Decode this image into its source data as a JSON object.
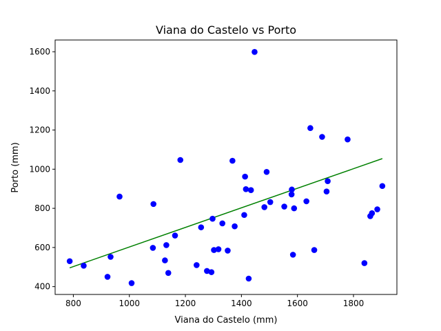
{
  "chart_data": {
    "type": "scatter",
    "title": "Viana do Castelo vs Porto",
    "xlabel": "Viana do Castelo (mm)",
    "ylabel": "Porto (mm)",
    "xlim": [
      735,
      1955
    ],
    "ylim": [
      360,
      1660
    ],
    "xticks": [
      800,
      1000,
      1200,
      1400,
      1600,
      1800
    ],
    "yticks": [
      400,
      600,
      800,
      1000,
      1200,
      1400,
      1600
    ],
    "grid": false,
    "colors": {
      "points": "#0000ff",
      "trend": "#008000",
      "axes": "#000000"
    },
    "series": [
      {
        "points": [
          {
            "x": 787,
            "y": 530
          },
          {
            "x": 837,
            "y": 507
          },
          {
            "x": 922,
            "y": 450
          },
          {
            "x": 933,
            "y": 552
          },
          {
            "x": 965,
            "y": 860
          },
          {
            "x": 1008,
            "y": 418
          },
          {
            "x": 1084,
            "y": 598
          },
          {
            "x": 1086,
            "y": 822
          },
          {
            "x": 1127,
            "y": 534
          },
          {
            "x": 1132,
            "y": 612
          },
          {
            "x": 1139,
            "y": 470
          },
          {
            "x": 1163,
            "y": 661
          },
          {
            "x": 1182,
            "y": 1047
          },
          {
            "x": 1240,
            "y": 510
          },
          {
            "x": 1256,
            "y": 703
          },
          {
            "x": 1277,
            "y": 480
          },
          {
            "x": 1293,
            "y": 474
          },
          {
            "x": 1297,
            "y": 747
          },
          {
            "x": 1302,
            "y": 587
          },
          {
            "x": 1318,
            "y": 591
          },
          {
            "x": 1332,
            "y": 723
          },
          {
            "x": 1351,
            "y": 584
          },
          {
            "x": 1368,
            "y": 1043
          },
          {
            "x": 1376,
            "y": 708
          },
          {
            "x": 1410,
            "y": 766
          },
          {
            "x": 1413,
            "y": 962
          },
          {
            "x": 1416,
            "y": 898
          },
          {
            "x": 1426,
            "y": 441
          },
          {
            "x": 1434,
            "y": 893
          },
          {
            "x": 1447,
            "y": 1599
          },
          {
            "x": 1482,
            "y": 806
          },
          {
            "x": 1490,
            "y": 986
          },
          {
            "x": 1503,
            "y": 832
          },
          {
            "x": 1553,
            "y": 809
          },
          {
            "x": 1580,
            "y": 896
          },
          {
            "x": 1579,
            "y": 871
          },
          {
            "x": 1584,
            "y": 563
          },
          {
            "x": 1588,
            "y": 800
          },
          {
            "x": 1632,
            "y": 836
          },
          {
            "x": 1646,
            "y": 1210
          },
          {
            "x": 1660,
            "y": 587
          },
          {
            "x": 1688,
            "y": 1165
          },
          {
            "x": 1704,
            "y": 886
          },
          {
            "x": 1708,
            "y": 939
          },
          {
            "x": 1779,
            "y": 1152
          },
          {
            "x": 1839,
            "y": 520
          },
          {
            "x": 1860,
            "y": 760
          },
          {
            "x": 1866,
            "y": 775
          },
          {
            "x": 1885,
            "y": 795
          },
          {
            "x": 1903,
            "y": 914
          }
        ]
      }
    ],
    "trendline": {
      "x": [
        787,
        1903
      ],
      "y": [
        496,
        1054
      ]
    }
  }
}
